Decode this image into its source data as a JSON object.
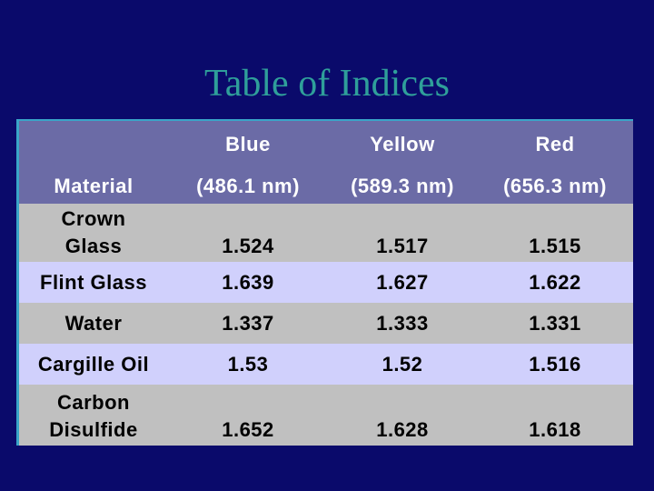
{
  "title": "Table of Indices",
  "table": {
    "header": {
      "material": "Material",
      "columns": [
        {
          "name": "Blue",
          "wavelength": "(486.1 nm)"
        },
        {
          "name": "Yellow",
          "wavelength": "(589.3 nm)"
        },
        {
          "name": "Red",
          "wavelength": "(656.3 nm)"
        }
      ]
    },
    "rows": [
      {
        "material": [
          "Crown",
          "Glass"
        ],
        "values": [
          "1.524",
          "1.517",
          "1.515"
        ]
      },
      {
        "material": [
          "Flint Glass"
        ],
        "values": [
          "1.639",
          "1.627",
          "1.622"
        ]
      },
      {
        "material": [
          "Water"
        ],
        "values": [
          "1.337",
          "1.333",
          "1.331"
        ]
      },
      {
        "material": [
          "Cargille Oil"
        ],
        "values": [
          "1.53",
          "1.52",
          "1.516"
        ]
      },
      {
        "material": [
          "Carbon",
          "Disulfide"
        ],
        "values": [
          "1.652",
          "1.628",
          "1.618"
        ]
      }
    ]
  }
}
